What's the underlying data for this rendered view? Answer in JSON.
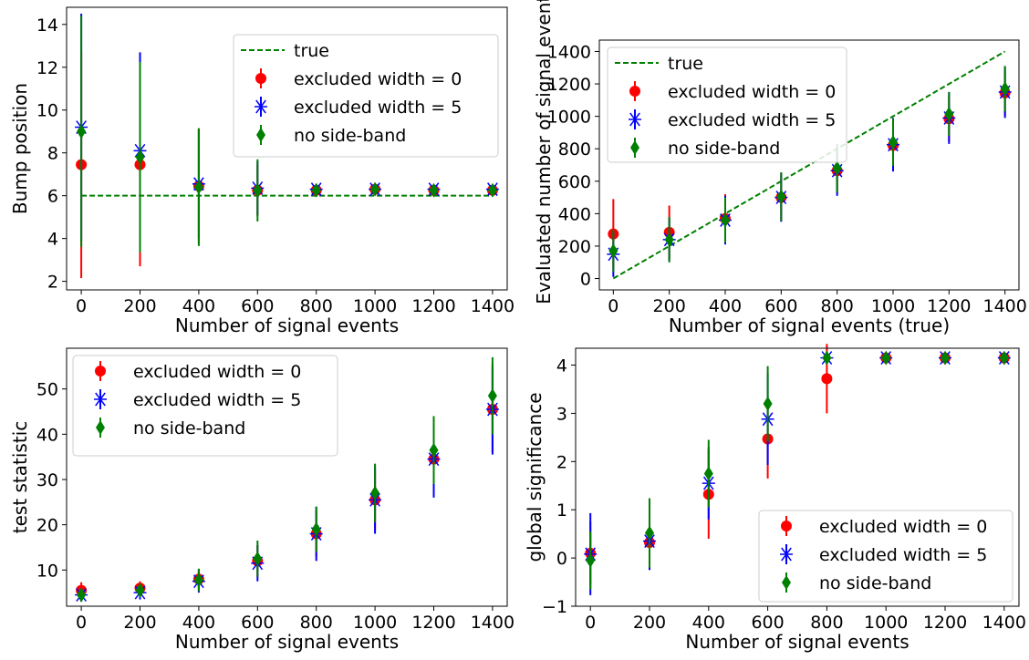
{
  "chart_data": [
    {
      "type": "scatter",
      "xlabel": "Number of signal events",
      "ylabel": "Bump position",
      "xlim": [
        -50,
        1450
      ],
      "ylim": [
        1.6,
        14.8
      ],
      "xticks": [
        0,
        200,
        400,
        600,
        800,
        1000,
        1200,
        1400
      ],
      "yticks": [
        2,
        4,
        6,
        8,
        10,
        12,
        14
      ],
      "legend_position": "top-right",
      "x": [
        0,
        200,
        400,
        600,
        800,
        1000,
        1200,
        1400
      ],
      "true_line": {
        "name": "true",
        "x": [
          0,
          1400
        ],
        "y": [
          6,
          6
        ]
      },
      "series": [
        {
          "name": "excluded width = 0",
          "y": [
            7.45,
            7.45,
            6.45,
            6.25,
            6.25,
            6.3,
            6.25,
            6.25
          ],
          "err": [
            5.3,
            4.75,
            2.7,
            1.2,
            0.25,
            0.2,
            0.15,
            0.15
          ]
        },
        {
          "name": "excluded width = 5",
          "y": [
            9.2,
            8.1,
            6.55,
            6.35,
            6.3,
            6.3,
            6.3,
            6.3
          ],
          "err": [
            5.3,
            4.6,
            2.55,
            1.25,
            0.25,
            0.2,
            0.15,
            0.15
          ]
        },
        {
          "name": "no side-band",
          "y": [
            9.0,
            7.8,
            6.4,
            6.25,
            6.25,
            6.3,
            6.25,
            6.25
          ],
          "err": [
            5.4,
            4.45,
            2.75,
            1.45,
            0.3,
            0.2,
            0.15,
            0.15
          ]
        }
      ]
    },
    {
      "type": "scatter",
      "xlabel": "Number of signal events (true)",
      "ylabel": "Evaluated number of signal events",
      "xlim": [
        -50,
        1450
      ],
      "ylim": [
        -70,
        1470
      ],
      "xticks": [
        0,
        200,
        400,
        600,
        800,
        1000,
        1200,
        1400
      ],
      "yticks": [
        0,
        200,
        400,
        600,
        800,
        1000,
        1200,
        1400
      ],
      "legend_position": "top-left",
      "x": [
        0,
        200,
        400,
        600,
        800,
        1000,
        1200,
        1400
      ],
      "true_line": {
        "name": "true",
        "x": [
          0,
          1400
        ],
        "y": [
          0,
          1400
        ]
      },
      "series": [
        {
          "name": "excluded width = 0",
          "y": [
            275,
            285,
            370,
            500,
            665,
            820,
            985,
            1145
          ],
          "err": [
            215,
            165,
            150,
            145,
            140,
            150,
            140,
            140
          ]
        },
        {
          "name": "excluded width = 5",
          "y": [
            150,
            240,
            360,
            500,
            665,
            825,
            990,
            1150
          ],
          "err": [
            140,
            135,
            150,
            150,
            155,
            165,
            160,
            160
          ]
        },
        {
          "name": "no side-band",
          "y": [
            170,
            240,
            360,
            505,
            680,
            840,
            1015,
            1170
          ],
          "err": [
            130,
            140,
            140,
            150,
            150,
            145,
            135,
            140
          ]
        }
      ]
    },
    {
      "type": "scatter",
      "xlabel": "Number of signal events",
      "ylabel": "test statistic",
      "xlim": [
        -50,
        1450
      ],
      "ylim": [
        2,
        59
      ],
      "xticks": [
        0,
        200,
        400,
        600,
        800,
        1000,
        1200,
        1400
      ],
      "yticks": [
        10,
        20,
        30,
        40,
        50
      ],
      "legend_position": "top-left",
      "x": [
        0,
        200,
        400,
        600,
        800,
        1000,
        1200,
        1400
      ],
      "series": [
        {
          "name": "excluded width = 0",
          "y": [
            5.5,
            6.0,
            8.0,
            12.0,
            18.0,
            25.5,
            34.5,
            45.5
          ],
          "err": [
            1.8,
            1.5,
            2.2,
            3.5,
            5.0,
            6.5,
            8.0,
            9.5
          ]
        },
        {
          "name": "excluded width = 5",
          "y": [
            4.5,
            5.0,
            7.5,
            11.5,
            18.0,
            25.5,
            34.5,
            45.5
          ],
          "err": [
            1.5,
            1.5,
            2.5,
            4.0,
            6.0,
            7.5,
            8.5,
            10.0
          ]
        },
        {
          "name": "no side-band",
          "y": [
            4.5,
            5.5,
            7.8,
            12.5,
            19.0,
            27.0,
            36.5,
            48.5
          ],
          "err": [
            1.5,
            1.5,
            2.5,
            4.0,
            5.0,
            6.5,
            7.5,
            8.5
          ]
        }
      ]
    },
    {
      "type": "scatter",
      "xlabel": "Number of signal events",
      "ylabel": "global significance",
      "xlim": [
        -50,
        1450
      ],
      "ylim": [
        -1,
        4.35
      ],
      "xticks": [
        0,
        200,
        400,
        600,
        800,
        1000,
        1200,
        1400
      ],
      "yticks": [
        -1,
        0,
        1,
        2,
        3,
        4
      ],
      "legend_position": "bottom-right",
      "x": [
        0,
        200,
        400,
        600,
        800,
        1000,
        1200,
        1400
      ],
      "series": [
        {
          "name": "excluded width = 0",
          "y": [
            0.1,
            0.32,
            1.32,
            2.47,
            3.72,
            4.15,
            4.15,
            4.15
          ],
          "err": [
            0.65,
            0.45,
            0.92,
            0.82,
            0.72,
            0.05,
            0.05,
            0.05
          ]
        },
        {
          "name": "excluded width = 5",
          "y": [
            0.08,
            0.35,
            1.55,
            2.88,
            4.15,
            4.15,
            4.15,
            4.15
          ],
          "err": [
            0.85,
            0.6,
            0.75,
            0.95,
            0.05,
            0.05,
            0.05,
            0.05
          ]
        },
        {
          "name": "no side-band",
          "y": [
            -0.05,
            0.52,
            1.75,
            3.2,
            4.15,
            4.15,
            4.15,
            4.15
          ],
          "err": [
            0.6,
            0.72,
            0.7,
            0.78,
            0.05,
            0.05,
            0.05,
            0.05
          ]
        }
      ]
    }
  ],
  "style": {
    "true_line_color": "#008000",
    "series_colors": [
      "#ff0000",
      "#0000ff",
      "#008000"
    ],
    "series_markers": [
      "circle",
      "x-marker",
      "diamond"
    ]
  }
}
